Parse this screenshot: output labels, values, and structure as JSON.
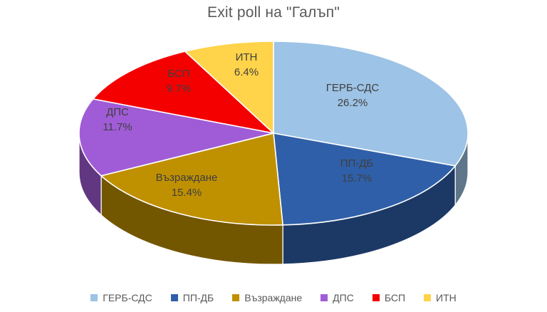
{
  "chart_data": {
    "type": "pie",
    "title": "Exit poll на \"Галъп\"",
    "effect": "3d",
    "start_angle_deg": 0,
    "direction": "clockwise",
    "legend_position": "bottom",
    "label_format": "name newline percent",
    "label_color": "#3F3F3F",
    "title_color": "#595959",
    "slices": [
      {
        "label": "ГЕРБ-СДС",
        "value": 26.2,
        "display": "26.2%",
        "color": "#9DC3E6"
      },
      {
        "label": "ПП-ДБ",
        "value": 15.7,
        "display": "15.7%",
        "color": "#2F5FA8"
      },
      {
        "label": "Възраждане",
        "value": 15.4,
        "display": "15.4%",
        "color": "#BF9000"
      },
      {
        "label": "ДПС",
        "value": 11.7,
        "display": "11.7%",
        "color": "#A05CD6"
      },
      {
        "label": "БСП",
        "value": 9.7,
        "display": "9.7%",
        "color": "#F40000"
      },
      {
        "label": "ИТН",
        "value": 6.4,
        "display": "6.4%",
        "color": "#FFD34A"
      }
    ]
  }
}
